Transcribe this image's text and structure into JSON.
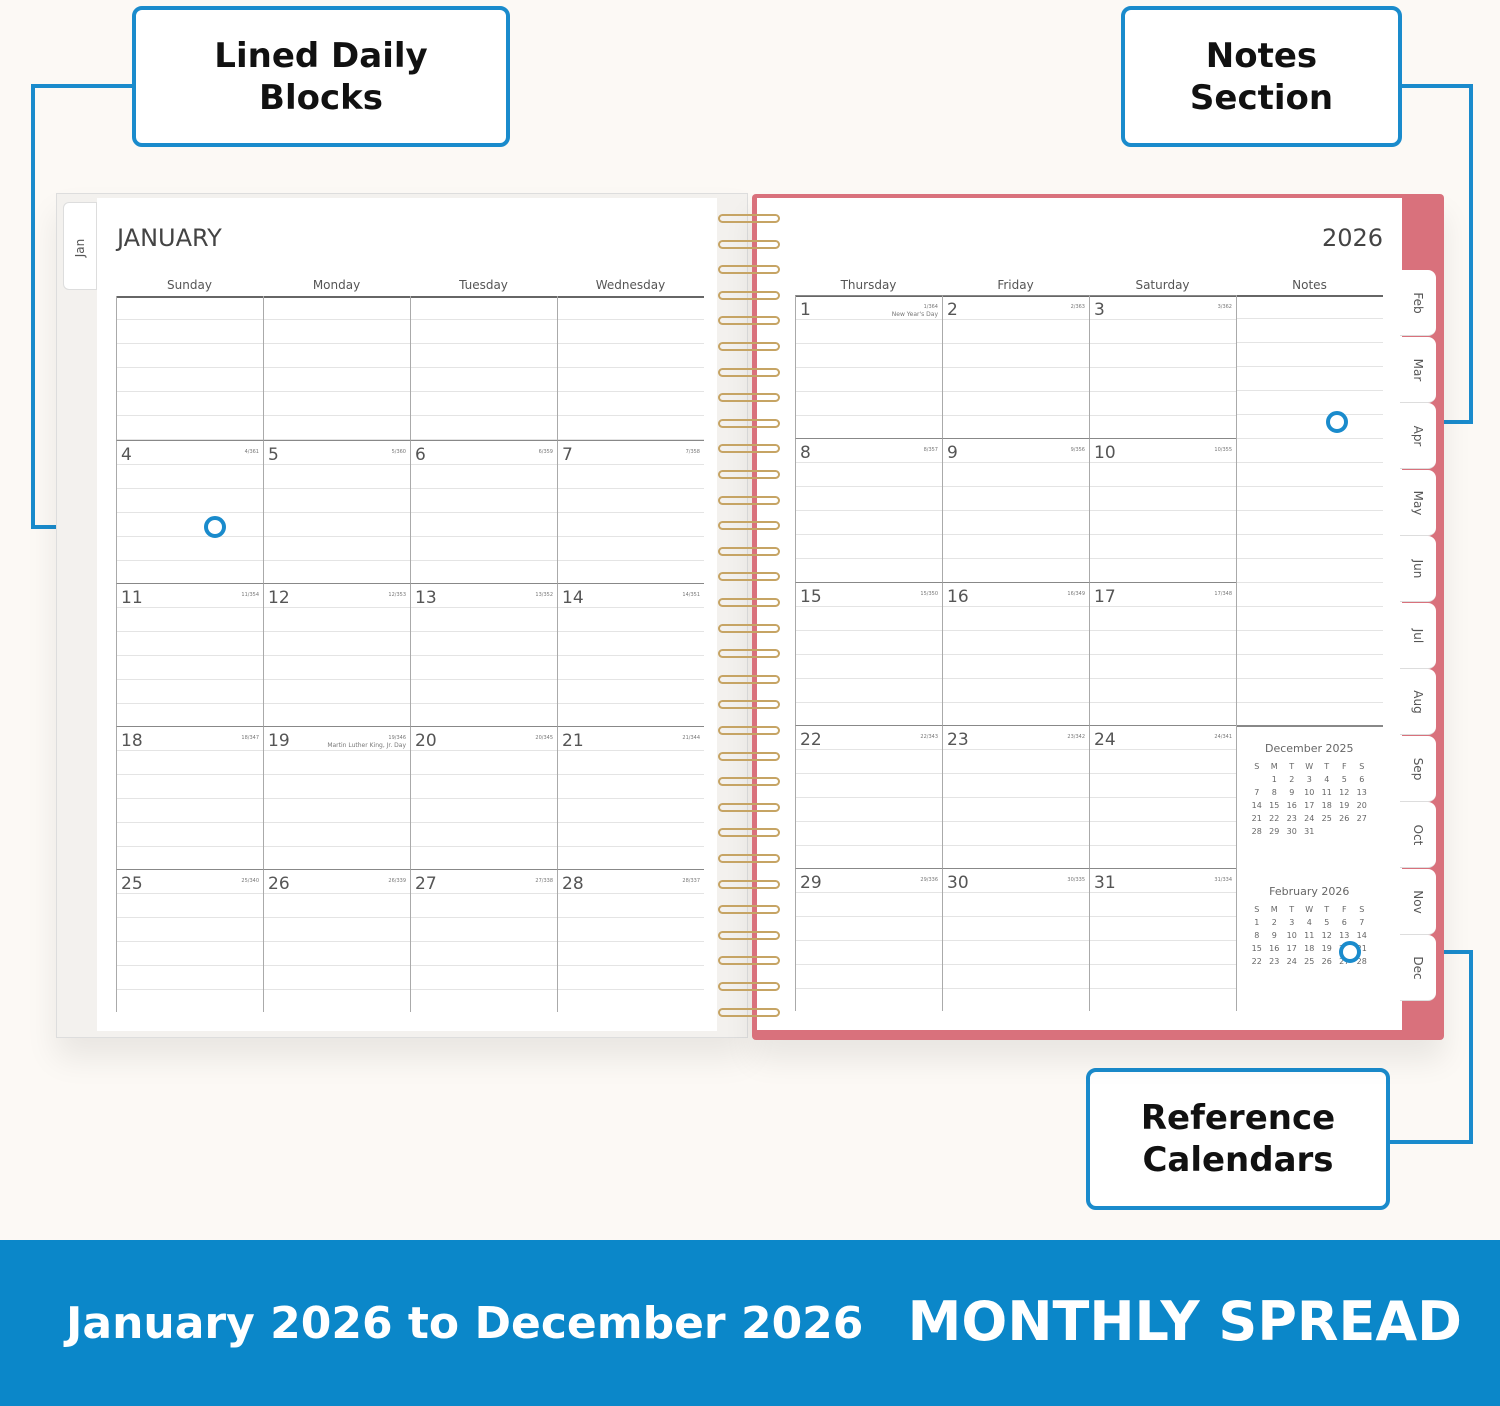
{
  "callouts": {
    "lined": "Lined Daily\nBlocks",
    "notes": "Notes\nSection",
    "reference": "Reference\nCalendars"
  },
  "banner": {
    "left": "January 2026 to December 2026",
    "right": "MONTHLY SPREAD"
  },
  "colors": {
    "accent": "#1a8bcc",
    "banner": "#0b87c9",
    "cover": "#d9717c",
    "coil": "#c6a464"
  },
  "left_page": {
    "month": "JANUARY",
    "tab": "Jan",
    "days": [
      "Sunday",
      "Monday",
      "Tuesday",
      "Wednesday"
    ],
    "weeks": [
      [
        null,
        null,
        null,
        null
      ],
      [
        4,
        5,
        6,
        7
      ],
      [
        11,
        12,
        13,
        14
      ],
      [
        18,
        19,
        20,
        21
      ],
      [
        25,
        26,
        27,
        28
      ]
    ]
  },
  "right_page": {
    "year": "2026",
    "days": [
      "Thursday",
      "Friday",
      "Saturday",
      "Notes"
    ],
    "weeks": [
      [
        1,
        2,
        3
      ],
      [
        8,
        9,
        10
      ],
      [
        15,
        16,
        17
      ],
      [
        22,
        23,
        24
      ],
      [
        29,
        30,
        31
      ]
    ],
    "tabs": [
      "Feb",
      "Mar",
      "Apr",
      "May",
      "Jun",
      "Jul",
      "Aug",
      "Sep",
      "Oct",
      "Nov",
      "Dec"
    ]
  },
  "holidays": {
    "1": "New Year's Day",
    "19": "Martin Luther King, Jr. Day"
  },
  "mini_calendars": [
    {
      "title": "December 2025",
      "head": [
        "S",
        "M",
        "T",
        "W",
        "T",
        "F",
        "S"
      ],
      "rows": [
        [
          "",
          "1",
          "2",
          "3",
          "4",
          "5",
          "6"
        ],
        [
          "7",
          "8",
          "9",
          "10",
          "11",
          "12",
          "13"
        ],
        [
          "14",
          "15",
          "16",
          "17",
          "18",
          "19",
          "20"
        ],
        [
          "21",
          "22",
          "23",
          "24",
          "25",
          "26",
          "27"
        ],
        [
          "28",
          "29",
          "30",
          "31",
          "",
          "",
          ""
        ]
      ]
    },
    {
      "title": "February 2026",
      "head": [
        "S",
        "M",
        "T",
        "W",
        "T",
        "F",
        "S"
      ],
      "rows": [
        [
          "1",
          "2",
          "3",
          "4",
          "5",
          "6",
          "7"
        ],
        [
          "8",
          "9",
          "10",
          "11",
          "12",
          "13",
          "14"
        ],
        [
          "15",
          "16",
          "17",
          "18",
          "19",
          "20",
          "21"
        ],
        [
          "22",
          "23",
          "24",
          "25",
          "26",
          "27",
          "28"
        ]
      ]
    }
  ]
}
